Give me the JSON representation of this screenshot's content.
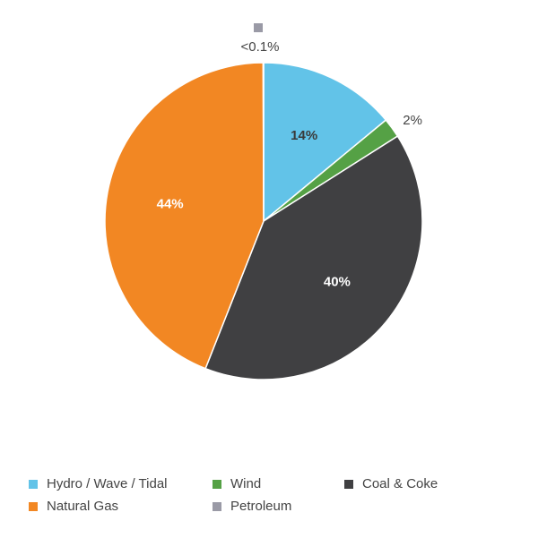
{
  "chart_data": {
    "type": "pie",
    "title": "",
    "slices": [
      {
        "name": "Hydro / Wave / Tidal",
        "value": 14,
        "label": "14%",
        "color": "#62c3e8",
        "label_style": "dark"
      },
      {
        "name": "Wind",
        "value": 2,
        "label": "2%",
        "color": "#55a145",
        "label_style": "outside"
      },
      {
        "name": "Coal & Coke",
        "value": 40,
        "label": "40%",
        "color": "#404042",
        "label_style": "light"
      },
      {
        "name": "Natural Gas",
        "value": 44,
        "label": "44%",
        "color": "#f28723",
        "label_style": "light"
      },
      {
        "name": "Petroleum",
        "value": 0.05,
        "label": "<0.1%",
        "color": "#9a9aa6",
        "label_style": "outside-top"
      }
    ],
    "start": "12 o'clock",
    "direction": "clockwise",
    "legend_position": "bottom"
  },
  "legend": {
    "items": [
      {
        "label": "Hydro / Wave / Tidal",
        "color": "#62c3e8"
      },
      {
        "label": "Wind",
        "color": "#55a145"
      },
      {
        "label": "Coal & Coke",
        "color": "#404042"
      },
      {
        "label": "Natural Gas",
        "color": "#f28723"
      },
      {
        "label": "Petroleum",
        "color": "#9a9aa6"
      }
    ]
  }
}
